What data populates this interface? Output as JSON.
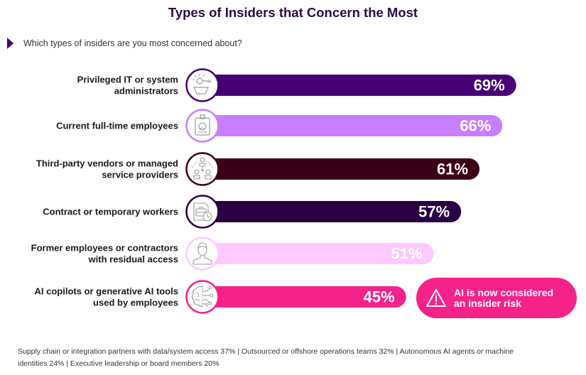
{
  "header": {
    "title": "Types of Insiders that Concern the Most",
    "question": "Which types of insiders are you most concerned about?"
  },
  "chart_data": {
    "type": "bar",
    "orientation": "horizontal",
    "title": "Types of Insiders that Concern the Most",
    "subtitle": "Which types of insiders are you most concerned about?",
    "xlabel": "",
    "ylabel": "",
    "unit": "%",
    "xlim": [
      0,
      100
    ],
    "grid": false,
    "legend": "none",
    "categories": [
      [
        "Privileged IT or system",
        "administrators"
      ],
      [
        "Current full-time employees"
      ],
      [
        "Third-party vendors or managed",
        "service providers"
      ],
      [
        "Contract or temporary workers"
      ],
      [
        "Former employees or contractors",
        "with residual access"
      ],
      [
        "AI copilots or generative AI tools",
        "used by employees"
      ]
    ],
    "values": [
      69,
      66,
      61,
      57,
      51,
      45
    ],
    "data_labels": [
      "69%",
      "66%",
      "61%",
      "57%",
      "51%",
      "45%"
    ],
    "colors": [
      "#460073",
      "#c87eff",
      "#3c0016",
      "#2c0045",
      "#ffc8ff",
      "#f5228a"
    ],
    "icons": [
      "key-in-hand-icon",
      "id-badge-icon",
      "vendor-network-icon",
      "briefcase-clock-icon",
      "person-icon",
      "ai-brain-icon"
    ],
    "annotation": "AI is now considered an insider risk"
  },
  "callout": {
    "text_line1": "AI is now considered",
    "text_line2": "an insider risk",
    "icon": "warning-icon",
    "color": "#f5228a"
  },
  "footer": {
    "line1": "Supply chain or integration partners with data/system access 37%  |  Outsourced or offshore operations teams 32%  |  Autonomous AI agents or machine",
    "line2": "identities 24% |  Executive leadership or board members 20%"
  },
  "other_responses": [
    {
      "label": "Supply chain or integration partners with data/system access",
      "value": 37
    },
    {
      "label": "Outsourced or offshore operations teams",
      "value": 32
    },
    {
      "label": "Autonomous AI agents or machine identities",
      "value": 24
    },
    {
      "label": "Executive leadership or board members",
      "value": 20
    }
  ]
}
